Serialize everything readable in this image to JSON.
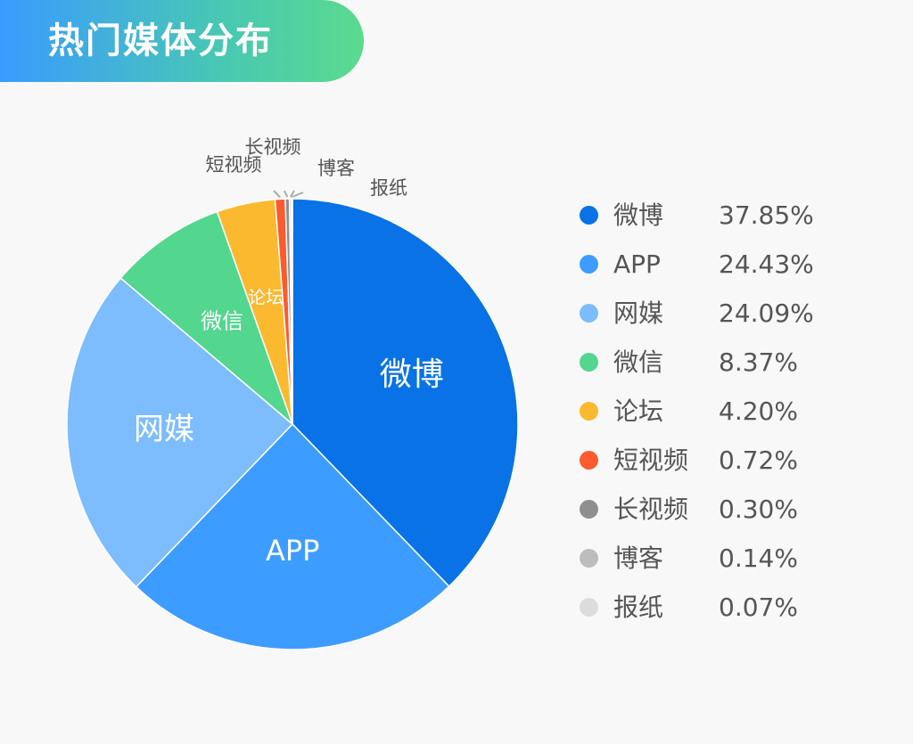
{
  "title": "热门媒体分布",
  "chart_data": {
    "type": "pie",
    "title": "热门媒体分布",
    "slices": [
      {
        "label": "微博",
        "value": 37.85,
        "display": "37.85%",
        "color": "#0872e6",
        "label_position": "inside"
      },
      {
        "label": "APP",
        "value": 24.43,
        "display": "24.43%",
        "color": "#3d9cff",
        "label_position": "inside"
      },
      {
        "label": "网媒",
        "value": 24.09,
        "display": "24.09%",
        "color": "#7dbcfd",
        "label_position": "inside"
      },
      {
        "label": "微信",
        "value": 8.37,
        "display": "8.37%",
        "color": "#53d68e",
        "label_position": "inside"
      },
      {
        "label": "论坛",
        "value": 4.2,
        "display": "4.20%",
        "color": "#fbb930",
        "label_position": "inside"
      },
      {
        "label": "短视频",
        "value": 0.72,
        "display": "0.72%",
        "color": "#fb5b2e",
        "label_position": "outside"
      },
      {
        "label": "长视频",
        "value": 0.3,
        "display": "0.30%",
        "color": "#8f8f8f",
        "label_position": "outside"
      },
      {
        "label": "博客",
        "value": 0.14,
        "display": "0.14%",
        "color": "#bdbdbd",
        "label_position": "outside"
      },
      {
        "label": "报纸",
        "value": 0.07,
        "display": "0.07%",
        "color": "#dcdcdc",
        "label_position": "outside"
      }
    ],
    "legend_position": "right"
  }
}
